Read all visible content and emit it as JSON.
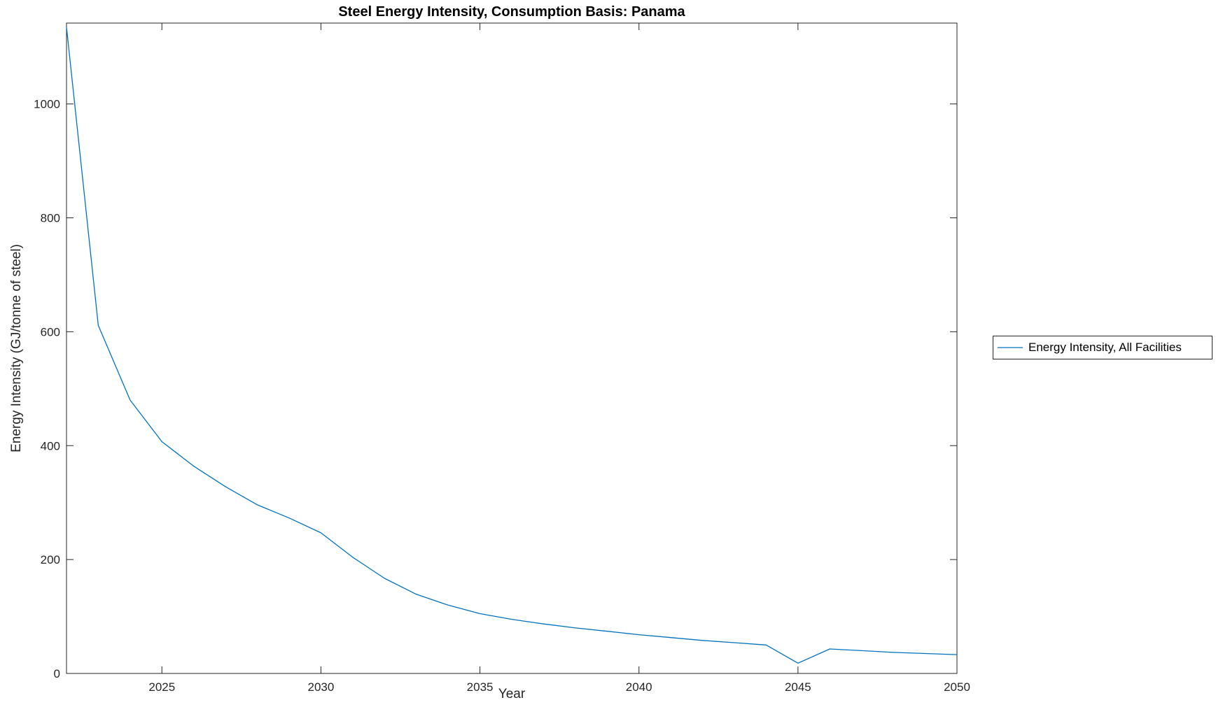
{
  "figure": {
    "background": "#ffffff"
  },
  "chart_data": {
    "type": "line",
    "title": "Steel Energy Intensity, Consumption Basis: Panama",
    "xlabel": "Year",
    "ylabel": "Energy Intensity (GJ/tonne of steel)",
    "xlim": [
      2022,
      2050
    ],
    "ylim": [
      0,
      1142
    ],
    "xticks": [
      2025,
      2030,
      2035,
      2040,
      2045,
      2050
    ],
    "yticks": [
      0,
      200,
      400,
      600,
      800,
      1000
    ],
    "grid": false,
    "legend_position": "right-outside",
    "axis_color": "#262626",
    "series": [
      {
        "name": "Energy Intensity, All Facilities",
        "color": "#0072BD",
        "x": [
          2022,
          2023,
          2024,
          2025,
          2026,
          2027,
          2028,
          2029,
          2030,
          2031,
          2032,
          2033,
          2034,
          2035,
          2036,
          2037,
          2038,
          2039,
          2040,
          2041,
          2042,
          2043,
          2044,
          2045,
          2046,
          2047,
          2048,
          2049,
          2050
        ],
        "y": [
          1135,
          611,
          480,
          407,
          364,
          328,
          296,
          273,
          247,
          204,
          167,
          139,
          120,
          105,
          95,
          87,
          80,
          74,
          68,
          63,
          58,
          54,
          50,
          18,
          43,
          40,
          37,
          35,
          33
        ]
      }
    ]
  },
  "legend": {
    "entries": [
      {
        "label": "Energy Intensity, All Facilities",
        "color": "#0072BD"
      }
    ]
  },
  "colors": {
    "line": "#0072BD",
    "axis": "#262626",
    "text": "#000000",
    "background": "#FFFFFF"
  }
}
